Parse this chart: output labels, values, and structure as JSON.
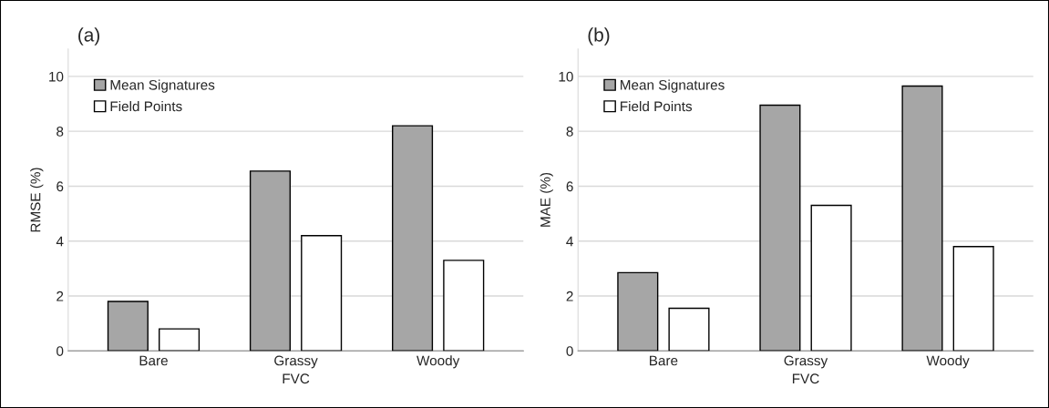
{
  "chart_data": [
    {
      "type": "bar",
      "title": "(a)",
      "xlabel": "FVC",
      "ylabel": "RMSE (%)",
      "categories": [
        "Bare",
        "Grassy",
        "Woody"
      ],
      "series": [
        {
          "name": "Mean Signatures",
          "color": "#a6a6a6",
          "values": [
            1.8,
            6.55,
            8.2
          ]
        },
        {
          "name": "Field Points",
          "color": "#ffffff",
          "values": [
            0.8,
            4.2,
            3.3
          ]
        }
      ],
      "ylim": [
        0,
        11
      ],
      "yticks": [
        0,
        2,
        4,
        6,
        8,
        10
      ],
      "grid": "y",
      "legend": "top left"
    },
    {
      "type": "bar",
      "title": "(b)",
      "xlabel": "FVC",
      "ylabel": "MAE (%)",
      "categories": [
        "Bare",
        "Grassy",
        "Woody"
      ],
      "series": [
        {
          "name": "Mean Signatures",
          "color": "#a6a6a6",
          "values": [
            2.85,
            8.95,
            9.65
          ]
        },
        {
          "name": "Field Points",
          "color": "#ffffff",
          "values": [
            1.55,
            5.3,
            3.8
          ]
        }
      ],
      "ylim": [
        0,
        11
      ],
      "yticks": [
        0,
        2,
        4,
        6,
        8,
        10
      ],
      "grid": "y",
      "legend": "top left"
    }
  ]
}
